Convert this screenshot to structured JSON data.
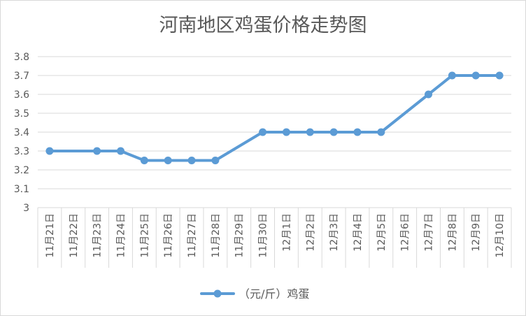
{
  "chart_data": {
    "type": "line",
    "title": "河南地区鸡蛋价格走势图",
    "categories": [
      "11月21日",
      "11月22日",
      "11月23日",
      "11月24日",
      "11月25日",
      "11月26日",
      "11月27日",
      "11月28日",
      "11月29日",
      "11月30日",
      "12月1日",
      "12月2日",
      "12月3日",
      "12月4日",
      "12月5日",
      "12月6日",
      "12月7日",
      "12月8日",
      "12月9日",
      "12月10日"
    ],
    "series": [
      {
        "name": "（元/斤）鸡蛋",
        "color": "#5b9bd5",
        "values": [
          3.3,
          null,
          3.3,
          3.3,
          3.25,
          3.25,
          3.25,
          3.25,
          null,
          3.4,
          3.4,
          3.4,
          3.4,
          3.4,
          3.4,
          null,
          3.6,
          3.7,
          3.7,
          3.7
        ]
      }
    ],
    "yticks": [
      "3",
      "3.1",
      "3.2",
      "3.3",
      "3.4",
      "3.5",
      "3.6",
      "3.7",
      "3.8"
    ],
    "ylim": [
      3,
      3.8
    ],
    "grid": true,
    "legend_position": "bottom"
  }
}
